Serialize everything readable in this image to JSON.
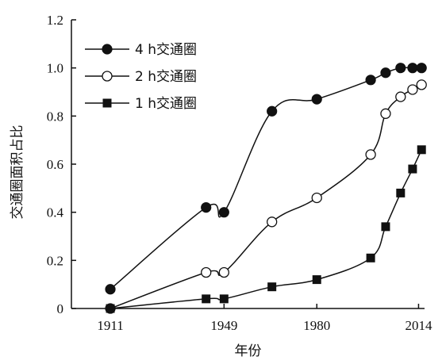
{
  "chart_data": {
    "type": "line",
    "title": "",
    "xlabel": "年份",
    "ylabel": "交通圈面积占比",
    "ylim": [
      0,
      1.2
    ],
    "xlim": [
      1898,
      2016
    ],
    "x_ticks": [
      1911,
      1949,
      1980,
      2014
    ],
    "x_tick_labels": [
      "1911",
      "1949",
      "1980",
      "2014"
    ],
    "y_ticks": [
      0,
      0.2,
      0.4,
      0.6,
      0.8,
      1.0,
      1.2
    ],
    "y_tick_labels": [
      "0",
      "0.2",
      "0.4",
      "0.6",
      "0.8",
      "1.0",
      "1.2"
    ],
    "grid": false,
    "legend_position": "top-left",
    "series": [
      {
        "name": "4 h交通圈",
        "marker": "filled-circle",
        "x": [
          1911,
          1943,
          1949,
          1965,
          1980,
          1998,
          2003,
          2008,
          2012,
          2015
        ],
        "y": [
          0.08,
          0.42,
          0.4,
          0.82,
          0.87,
          0.95,
          0.98,
          1.0,
          1.0,
          1.0
        ]
      },
      {
        "name": "2 h交通圈",
        "marker": "open-circle",
        "x": [
          1911,
          1943,
          1949,
          1965,
          1980,
          1998,
          2003,
          2008,
          2012,
          2015
        ],
        "y": [
          0.0,
          0.15,
          0.15,
          0.36,
          0.46,
          0.64,
          0.81,
          0.88,
          0.91,
          0.93
        ]
      },
      {
        "name": "1 h交通圈",
        "marker": "filled-square",
        "x": [
          1911,
          1943,
          1949,
          1965,
          1980,
          1998,
          2003,
          2008,
          2012,
          2015
        ],
        "y": [
          0.0,
          0.04,
          0.04,
          0.09,
          0.12,
          0.21,
          0.34,
          0.48,
          0.58,
          0.66
        ]
      }
    ]
  }
}
